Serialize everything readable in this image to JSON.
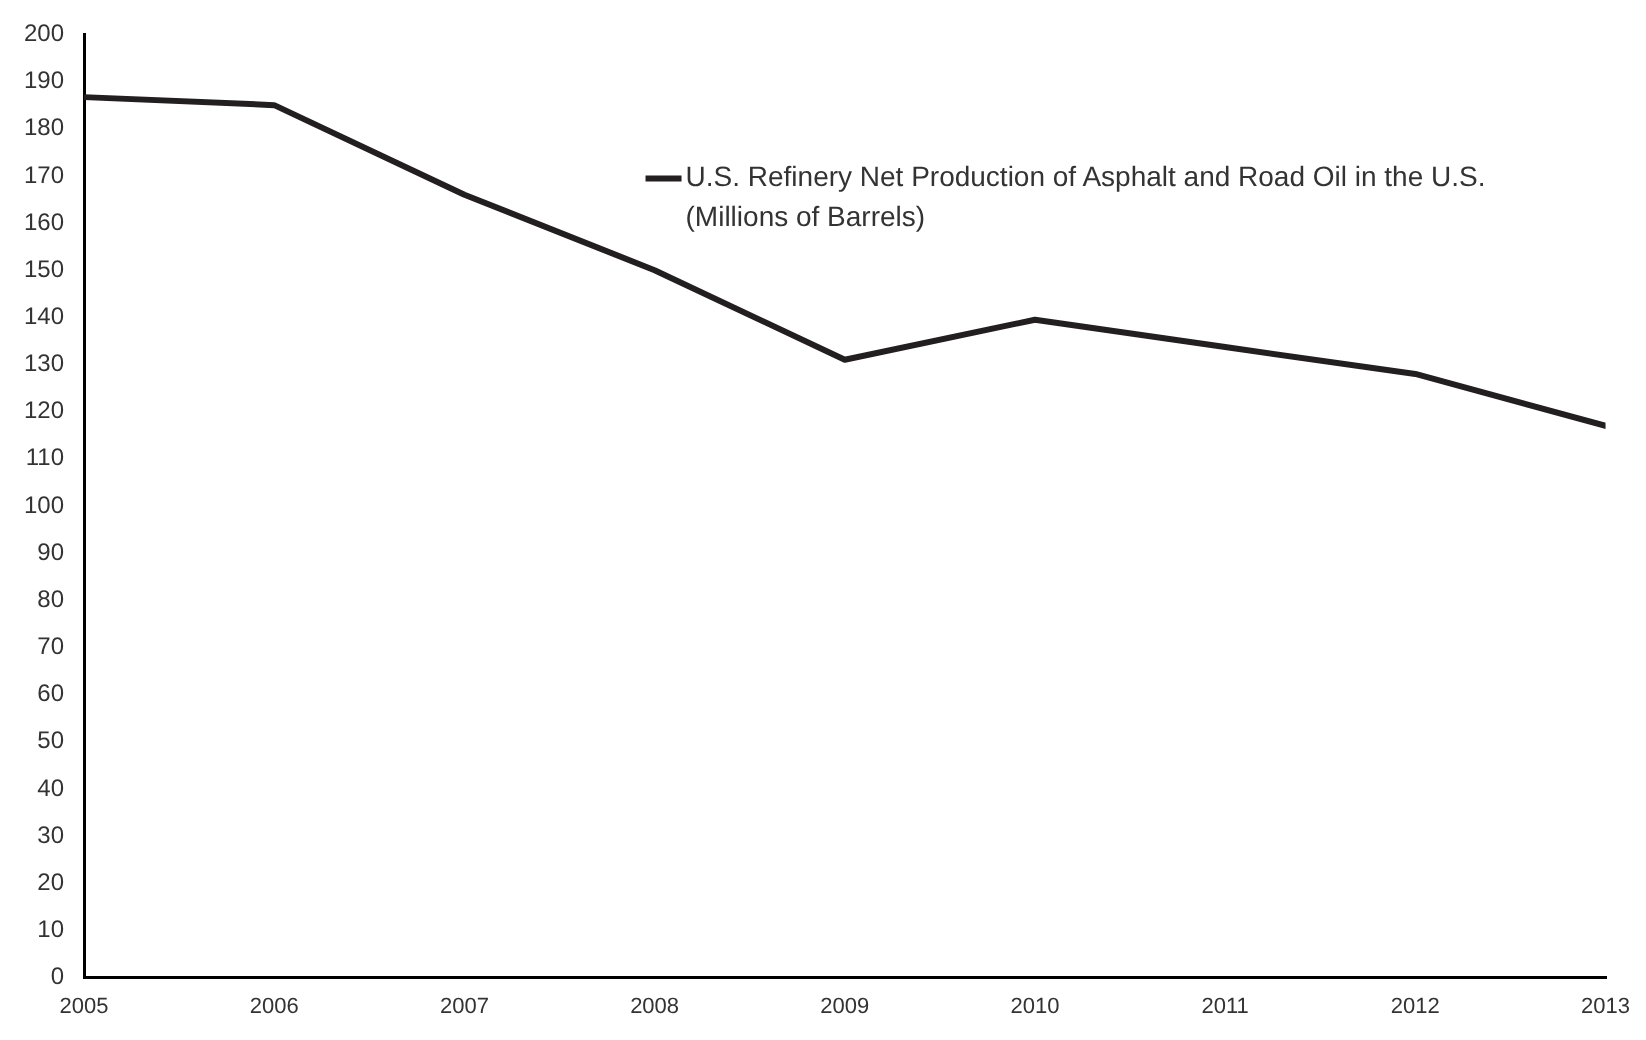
{
  "chart_data": {
    "type": "line",
    "x": [
      2005,
      2006,
      2007,
      2008,
      2009,
      2010,
      2011,
      2012,
      2013
    ],
    "series": [
      {
        "name": "U.S. Refinery Net Production of Asphalt and Road Oil in the U.S. (Millions of Barrels)",
        "color": "#231f20",
        "values": [
          186.7,
          185,
          166,
          150,
          131,
          139.5,
          133.7,
          128,
          117
        ]
      }
    ],
    "xlim": [
      2005,
      2013
    ],
    "xticks": [
      2005,
      2006,
      2007,
      2008,
      2009,
      2010,
      2011,
      2012,
      2013
    ],
    "ylim": [
      0,
      200
    ],
    "yticks": [
      0,
      10,
      20,
      30,
      40,
      50,
      60,
      70,
      80,
      90,
      100,
      110,
      120,
      130,
      140,
      150,
      160,
      170,
      180,
      190,
      200
    ],
    "grid": false,
    "legend": "top right",
    "marker": "none",
    "line_style": "solid"
  }
}
